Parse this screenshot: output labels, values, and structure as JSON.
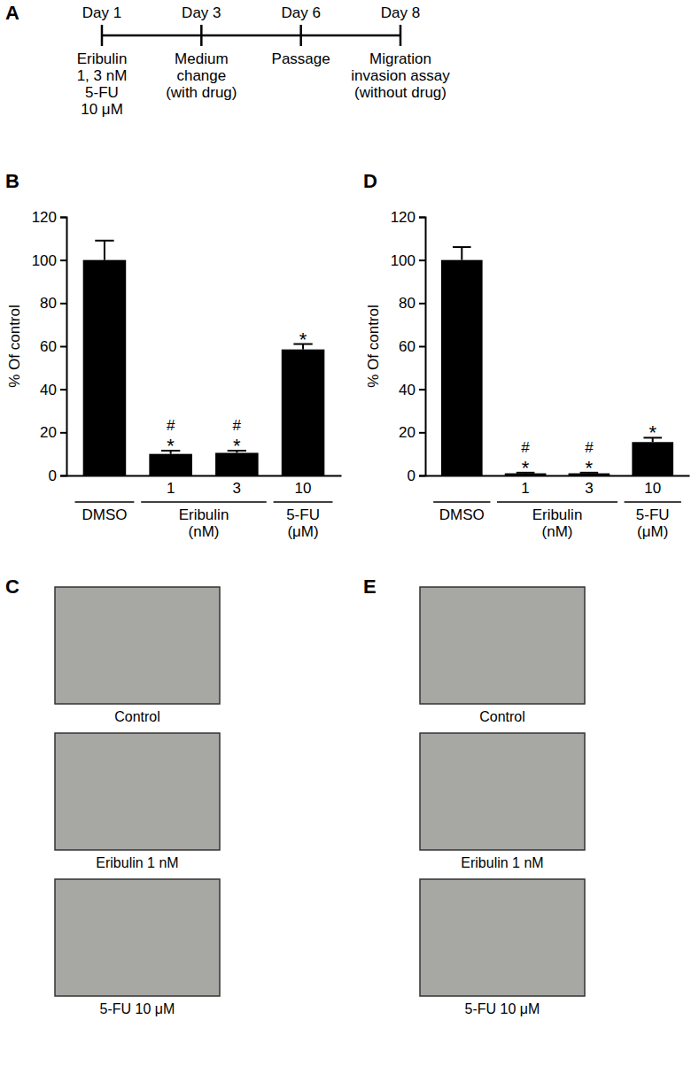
{
  "panel_labels": [
    "A",
    "B",
    "C",
    "D",
    "E"
  ],
  "timeline": {
    "events": [
      {
        "day": "Day 1",
        "text": [
          "Eribulin",
          "1, 3 nM",
          "5-FU",
          "10 μM"
        ]
      },
      {
        "day": "Day 3",
        "text": [
          "Medium",
          "change",
          "(with drug)"
        ]
      },
      {
        "day": "Day 6",
        "text": [
          "Passage"
        ]
      },
      {
        "day": "Day 8",
        "text": [
          "Migration",
          "invasion assay",
          "(without drug)"
        ]
      }
    ]
  },
  "chart_data": [
    {
      "type": "bar",
      "y_label": "% Of control",
      "categories": [
        null,
        "1",
        "3",
        "10"
      ],
      "values": [
        100,
        10,
        10.5,
        58.5
      ],
      "errors": [
        9,
        1.5,
        1,
        2.5
      ],
      "significance": [
        null,
        [
          "#",
          "*"
        ],
        [
          "#",
          "*"
        ],
        [
          "*"
        ]
      ],
      "groups": [
        {
          "label": [
            "DMSO"
          ],
          "start": 0,
          "end": 0
        },
        {
          "label": [
            "Eribulin",
            "(nM)"
          ],
          "start": 1,
          "end": 2
        },
        {
          "label": [
            "5-FU",
            "(μM)"
          ],
          "start": 3,
          "end": 3
        }
      ],
      "color": "#000000",
      "ylim": [
        0,
        120
      ],
      "yticks": [
        0,
        20,
        40,
        60,
        80,
        100,
        120
      ],
      "grid": false
    },
    {
      "type": "bar",
      "y_label": "% Of control",
      "categories": [
        null,
        "1",
        "3",
        "10"
      ],
      "values": [
        100,
        1,
        1,
        15.5
      ],
      "errors": [
        6,
        0.3,
        0.3,
        2
      ],
      "significance": [
        null,
        [
          "#",
          "*"
        ],
        [
          "#",
          "*"
        ],
        [
          "*"
        ]
      ],
      "groups": [
        {
          "label": [
            "DMSO"
          ],
          "start": 0,
          "end": 0
        },
        {
          "label": [
            "Eribulin",
            "(nM)"
          ],
          "start": 1,
          "end": 2
        },
        {
          "label": [
            "5-FU",
            "(μM)"
          ],
          "start": 3,
          "end": 3
        }
      ],
      "color": "#000000",
      "ylim": [
        0,
        120
      ],
      "yticks": [
        0,
        20,
        40,
        60,
        80,
        100,
        120
      ],
      "grid": false
    }
  ],
  "micrographs": [
    {
      "captions": [
        "Control",
        "Eribulin 1 nM",
        "5-FU 10 μM"
      ]
    },
    {
      "captions": [
        "Control",
        "Eribulin 1 nM",
        "5-FU 10 μM"
      ]
    }
  ]
}
